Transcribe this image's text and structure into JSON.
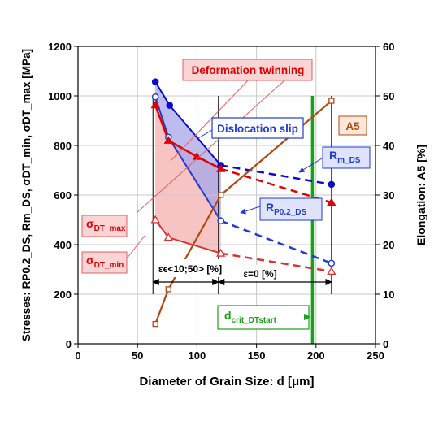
{
  "chart_data": {
    "type": "line",
    "xlabel": "Diameter of Grain Size: d [μm]",
    "ylabel_left": "Stresses: RP0.2_DS, Rm_DS, σDT_min, σDT_max [MPa]",
    "ylabel_right": "Elongation: A5 [%]",
    "xlim": [
      0,
      250
    ],
    "ylim_left": [
      0,
      1200
    ],
    "ylim_right": [
      0,
      60
    ],
    "xticks": [
      "0",
      "50",
      "100",
      "150",
      "200",
      "250"
    ],
    "yticks_left": [
      "0",
      "200",
      "400",
      "600",
      "800",
      "1000",
      "1200"
    ],
    "yticks_right": [
      "0",
      "10",
      "20",
      "30",
      "40",
      "50",
      "60"
    ],
    "grid": true,
    "colors": {
      "rm_ds": "#0a0ad2",
      "rp02_ds": "#1f3bd6",
      "dt_max": "#e00000",
      "dt_min": "#e03030",
      "a5": "#b04a14",
      "green_line": "#1aa01a",
      "pink_fill": "#f7b9b9",
      "blue_fill": "#a6a6ea"
    },
    "series": [
      {
        "id": "rm_ds",
        "axis": "left",
        "marker": "filled-circle",
        "solid": {
          "x": [
            65,
            77,
            120
          ],
          "y": [
            1057,
            962,
            720
          ]
        },
        "dashed": {
          "x": [
            120,
            213
          ],
          "y": [
            720,
            643
          ]
        }
      },
      {
        "id": "rp02_ds",
        "axis": "left",
        "marker": "open-circle",
        "solid": {
          "x": [
            65,
            76,
            120
          ],
          "y": [
            996,
            833,
            496
          ]
        },
        "dashed": {
          "x": [
            120,
            213
          ],
          "y": [
            496,
            325
          ]
        }
      },
      {
        "id": "dt_max",
        "axis": "left",
        "marker": "filled-triangle",
        "solid": {
          "x": [
            65,
            76,
            100,
            120
          ],
          "y": [
            963,
            820,
            755,
            706
          ]
        },
        "dashed": {
          "x": [
            120,
            213
          ],
          "y": [
            706,
            570
          ]
        }
      },
      {
        "id": "dt_min",
        "axis": "left",
        "marker": "open-triangle",
        "solid": {
          "x": [
            65,
            76,
            120
          ],
          "y": [
            500,
            429,
            365
          ]
        },
        "dashed": {
          "x": [
            120,
            213
          ],
          "y": [
            365,
            292
          ]
        }
      },
      {
        "id": "a5",
        "axis": "right",
        "marker": "open-square",
        "x": [
          65,
          76,
          120,
          213
        ],
        "y": [
          4,
          11,
          30,
          49
        ]
      }
    ],
    "green_vline_x": 197,
    "bracket_lines_x": [
      63,
      118,
      213
    ],
    "annotations": {
      "deformation_twinning": "Deformation twinning",
      "dislocation_slip": "Dislocation slip",
      "a5": "A5",
      "rm_main": "R",
      "rm_sub": "m_DS",
      "rp_main": "R",
      "rp_sub": "P0.2_DS",
      "dtmax_main": "σ",
      "dtmax_sub": "DT_max",
      "dtmin_main": "σ",
      "dtmin_sub": "DT_min",
      "eps_range": "εϵ<10;50> [%]",
      "eps_zero": "ε=0 [%]",
      "dcrit_main": "d",
      "dcrit_sub": "crit_DTstart"
    }
  }
}
